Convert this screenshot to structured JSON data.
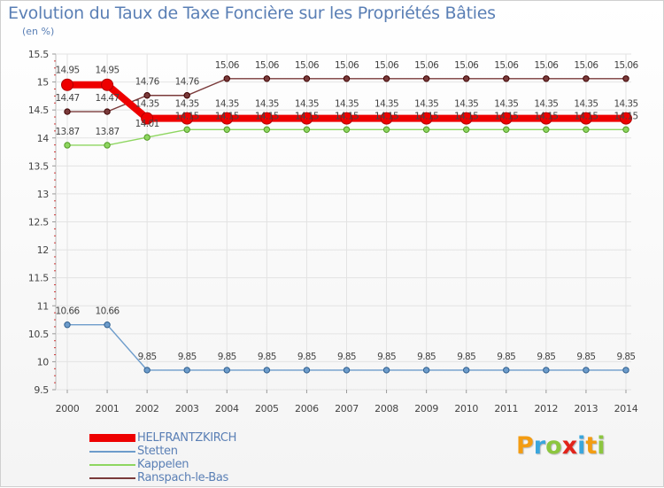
{
  "chart_data": {
    "type": "line",
    "title": "Evolution du Taux de Taxe Foncière sur les Propriétés Bâties",
    "unit_label": "(en %)",
    "categories": [
      "2000",
      "2001",
      "2002",
      "2003",
      "2004",
      "2005",
      "2006",
      "2007",
      "2008",
      "2009",
      "2010",
      "2011",
      "2012",
      "2013",
      "2014"
    ],
    "y_ticks": [
      "15.5",
      "15",
      "14.5",
      "14",
      "13.5",
      "13",
      "12.5",
      "12",
      "11.5",
      "11",
      "10.5",
      "10",
      "9.5"
    ],
    "ylim": [
      9.5,
      15.5
    ],
    "series": [
      {
        "name": "HELFRANTZKIRCH",
        "color": "#ee0000",
        "values": [
          14.95,
          14.95,
          14.35,
          14.35,
          14.35,
          14.35,
          14.35,
          14.35,
          14.35,
          14.35,
          14.35,
          14.35,
          14.35,
          14.35,
          14.35
        ],
        "labels": [
          "14.95",
          "14.95",
          "14.35",
          "14.35",
          "14.35",
          "14.35",
          "14.35",
          "14.35",
          "14.35",
          "14.35",
          "14.35",
          "14.35",
          "14.35",
          "14.35",
          "14.35"
        ]
      },
      {
        "name": "Stetten",
        "color": "#6d9ccb",
        "values": [
          10.66,
          10.66,
          9.85,
          9.85,
          9.85,
          9.85,
          9.85,
          9.85,
          9.85,
          9.85,
          9.85,
          9.85,
          9.85,
          9.85,
          9.85
        ],
        "labels": [
          "10.66",
          "10.66",
          "9.85",
          "9.85",
          "9.85",
          "9.85",
          "9.85",
          "9.85",
          "9.85",
          "9.85",
          "9.85",
          "9.85",
          "9.85",
          "9.85",
          "9.85"
        ]
      },
      {
        "name": "Kappelen",
        "color": "#8ed660",
        "values": [
          13.87,
          13.87,
          14.01,
          14.15,
          14.15,
          14.15,
          14.15,
          14.15,
          14.15,
          14.15,
          14.15,
          14.15,
          14.15,
          14.15,
          14.15
        ],
        "labels": [
          "13.87",
          "13.87",
          "14.01",
          "14.15",
          "14.15",
          "14.15",
          "14.15",
          "14.15",
          "14.15",
          "14.15",
          "14.15",
          "14.15",
          "14.15",
          "14.15",
          "14.15"
        ]
      },
      {
        "name": "Ranspach-le-Bas",
        "color": "#7a3a3a",
        "values": [
          14.47,
          14.47,
          14.76,
          14.76,
          15.06,
          15.06,
          15.06,
          15.06,
          15.06,
          15.06,
          15.06,
          15.06,
          15.06,
          15.06,
          15.06
        ],
        "labels": [
          "14.47",
          "14.47",
          "14.76",
          "14.76",
          "15.06",
          "15.06",
          "15.06",
          "15.06",
          "15.06",
          "15.06",
          "15.06",
          "15.06",
          "15.06",
          "15.06",
          "15.06"
        ]
      }
    ],
    "grid": true,
    "legend_position": "bottom-left"
  },
  "brand": {
    "text": "Proxiti",
    "letters": [
      {
        "ch": "P",
        "color": "#f39c12"
      },
      {
        "ch": "r",
        "color": "#3aa6dd"
      },
      {
        "ch": "o",
        "color": "#8cc63f"
      },
      {
        "ch": "x",
        "color": "#e2231a"
      },
      {
        "ch": "i",
        "color": "#3aa6dd"
      },
      {
        "ch": "t",
        "color": "#f39c12"
      },
      {
        "ch": "i",
        "color": "#8cc63f"
      }
    ]
  }
}
